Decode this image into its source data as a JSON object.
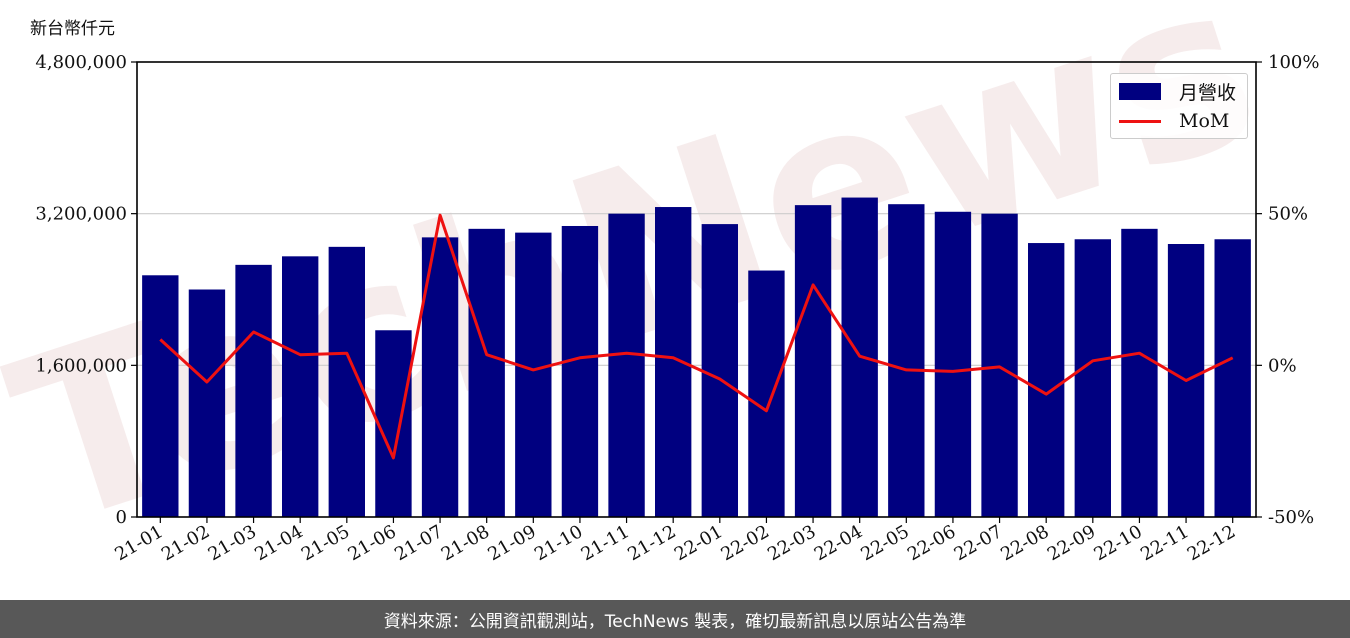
{
  "unit_label": "新台幣仟元",
  "footer_text": "資料來源：公開資訊觀測站，TechNews 製表，確切最新訊息以原站公告為準",
  "watermark_text": "TechNews",
  "colors": {
    "bar": "#000080",
    "line": "#ee1111",
    "grid": "#cccccc",
    "footer_bg": "#585858"
  },
  "chart_data": {
    "type": "bar",
    "categories": [
      "21-01",
      "21-02",
      "21-03",
      "21-04",
      "21-05",
      "21-06",
      "21-07",
      "21-08",
      "21-09",
      "21-10",
      "21-11",
      "21-12",
      "22-01",
      "22-02",
      "22-03",
      "22-04",
      "22-05",
      "22-06",
      "22-07",
      "22-08",
      "22-09",
      "22-10",
      "22-11",
      "22-12"
    ],
    "series": [
      {
        "name": "月營收",
        "type": "bar",
        "axis": "left",
        "values": [
          2550000,
          2400000,
          2660000,
          2750000,
          2850000,
          1970000,
          2950000,
          3040000,
          3000000,
          3070000,
          3200000,
          3270000,
          3090000,
          2600000,
          3290000,
          3370000,
          3300000,
          3220000,
          3200000,
          2890000,
          2930000,
          3040000,
          2880000,
          2930000
        ]
      },
      {
        "name": "MoM",
        "type": "line",
        "axis": "right",
        "values": [
          8.5,
          -5.5,
          11.0,
          3.5,
          4.0,
          -30.5,
          49.5,
          3.5,
          -1.5,
          2.5,
          4.0,
          2.5,
          -4.5,
          -15.0,
          26.5,
          3.0,
          -1.5,
          -2.0,
          -0.5,
          -9.5,
          1.5,
          4.0,
          -5.0,
          2.5
        ]
      }
    ],
    "yaxis_left": {
      "min": 0,
      "max": 4800000,
      "ticks": [
        0,
        1600000,
        3200000,
        4800000
      ],
      "tick_labels": [
        "0",
        "1,600,000",
        "3,200,000",
        "4,800,000"
      ]
    },
    "yaxis_right": {
      "min": -50,
      "max": 100,
      "ticks": [
        -50,
        0,
        50,
        100
      ],
      "tick_labels": [
        "-50%",
        "0%",
        "50%",
        "100%"
      ]
    },
    "grid": "horizontal",
    "legend_position": "top-right"
  }
}
